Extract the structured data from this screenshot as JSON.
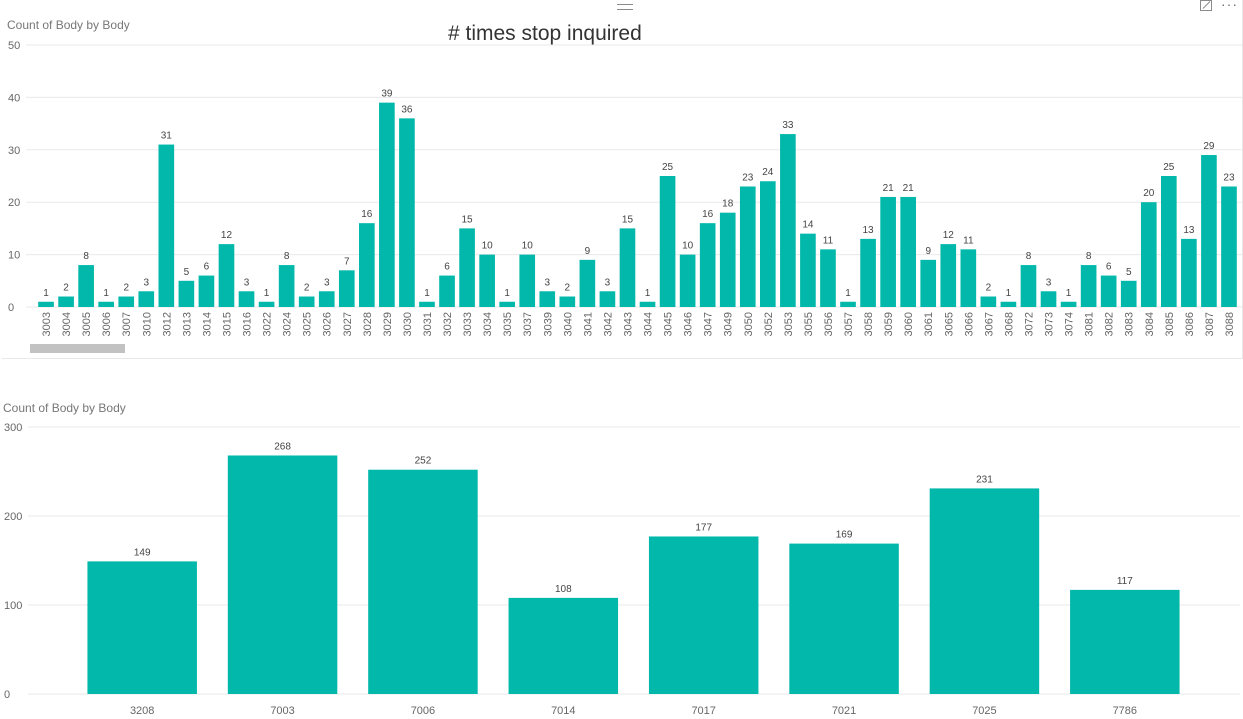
{
  "overlay_text": "# times stop inquired",
  "toolbar": {
    "focus_icon": "focus-mode-icon",
    "more_icon": "more-options-icon",
    "more_glyph": "···"
  },
  "colors": {
    "bar": "#01b8aa",
    "grid": "#eaeaea",
    "axis_text": "#666666",
    "title_text": "#777777"
  },
  "chart_data": [
    {
      "type": "bar",
      "title": "Count of Body by Body",
      "ylim": [
        0,
        50
      ],
      "yticks": [
        0,
        10,
        20,
        30,
        40,
        50
      ],
      "grid": true,
      "data_labels": true,
      "categories": [
        "3003",
        "3004",
        "3005",
        "3006",
        "3007",
        "3010",
        "3012",
        "3013",
        "3014",
        "3015",
        "3016",
        "3022",
        "3024",
        "3025",
        "3026",
        "3027",
        "3028",
        "3029",
        "3030",
        "3031",
        "3032",
        "3033",
        "3034",
        "3035",
        "3037",
        "3039",
        "3040",
        "3041",
        "3042",
        "3043",
        "3044",
        "3045",
        "3046",
        "3047",
        "3049",
        "3050",
        "3052",
        "3053",
        "3055",
        "3056",
        "3057",
        "3058",
        "3059",
        "3060",
        "3061",
        "3065",
        "3066",
        "3067",
        "3068",
        "3072",
        "3073",
        "3074",
        "3081",
        "3082",
        "3083",
        "3084",
        "3085",
        "3086",
        "3087",
        "3088"
      ],
      "values": [
        1,
        2,
        8,
        1,
        2,
        3,
        31,
        5,
        6,
        12,
        3,
        1,
        8,
        2,
        3,
        7,
        16,
        39,
        36,
        1,
        6,
        15,
        10,
        1,
        10,
        3,
        2,
        9,
        3,
        15,
        1,
        25,
        10,
        16,
        18,
        23,
        24,
        33,
        14,
        11,
        1,
        13,
        21,
        21,
        9,
        12,
        11,
        2,
        1,
        8,
        3,
        1,
        8,
        6,
        5,
        20,
        25,
        13,
        29,
        23
      ]
    },
    {
      "type": "bar",
      "title": "Count of Body by Body",
      "ylim": [
        0,
        300
      ],
      "yticks": [
        0,
        100,
        200,
        300
      ],
      "grid": true,
      "data_labels": true,
      "categories": [
        "3208",
        "7003",
        "7006",
        "7014",
        "7017",
        "7021",
        "7025",
        "7786"
      ],
      "values": [
        149,
        268,
        252,
        108,
        177,
        169,
        231,
        117
      ]
    }
  ]
}
